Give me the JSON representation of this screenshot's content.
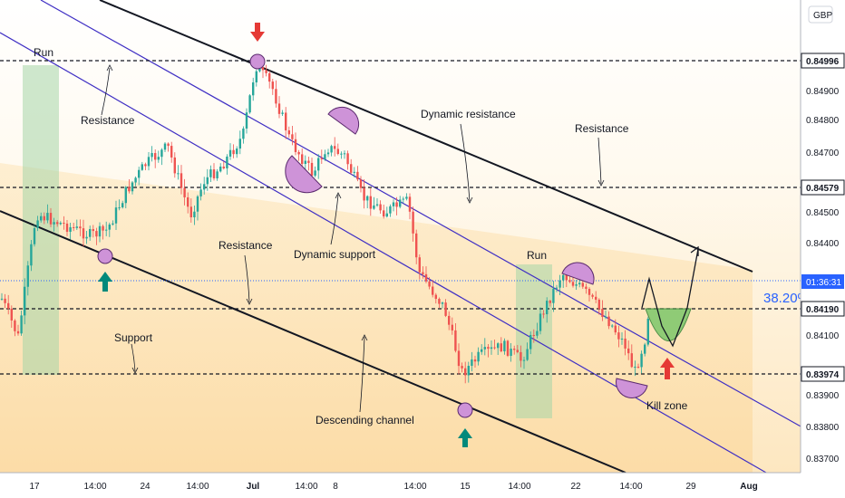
{
  "currency": "GBP",
  "chart_data": {
    "type": "candlestick",
    "y_range": [
      0.8365,
      0.851
    ],
    "y_ticks": [
      "0.84900",
      "0.84800",
      "0.84700",
      "0.84500",
      "0.84400",
      "0.84100",
      "0.83900",
      "0.83800",
      "0.83700"
    ],
    "x_labels": [
      "17",
      "14:00",
      "24",
      "14:00",
      "Jul",
      "14:00",
      "8",
      "14:00",
      "15",
      "14:00",
      "22",
      "14:00",
      "29",
      "Aug"
    ],
    "level_tags": [
      "0.84996",
      "0.84579",
      "0.84190",
      "0.83974"
    ],
    "level_values": [
      0.84996,
      0.84579,
      0.8419,
      0.83974
    ],
    "current_price_time": "01:36:31",
    "current_price_value": 0.84245,
    "fib_label": "38.20%",
    "annotations": [
      "Run",
      "Resistance",
      "Dynamic resistance",
      "Resistance",
      "Resistance",
      "Dynamic support",
      "Run",
      "Support",
      "Descending channel",
      "Kill zone"
    ],
    "colors": {
      "up": "#26a69a",
      "down": "#ef5350",
      "channel_fill": "#fde9c4",
      "run_zone": "#a5d6a7",
      "marker": "#ce93d8",
      "channel_line": "#131722",
      "dynamic_line": "#3f2fc4",
      "fib": "#2962ff"
    }
  }
}
